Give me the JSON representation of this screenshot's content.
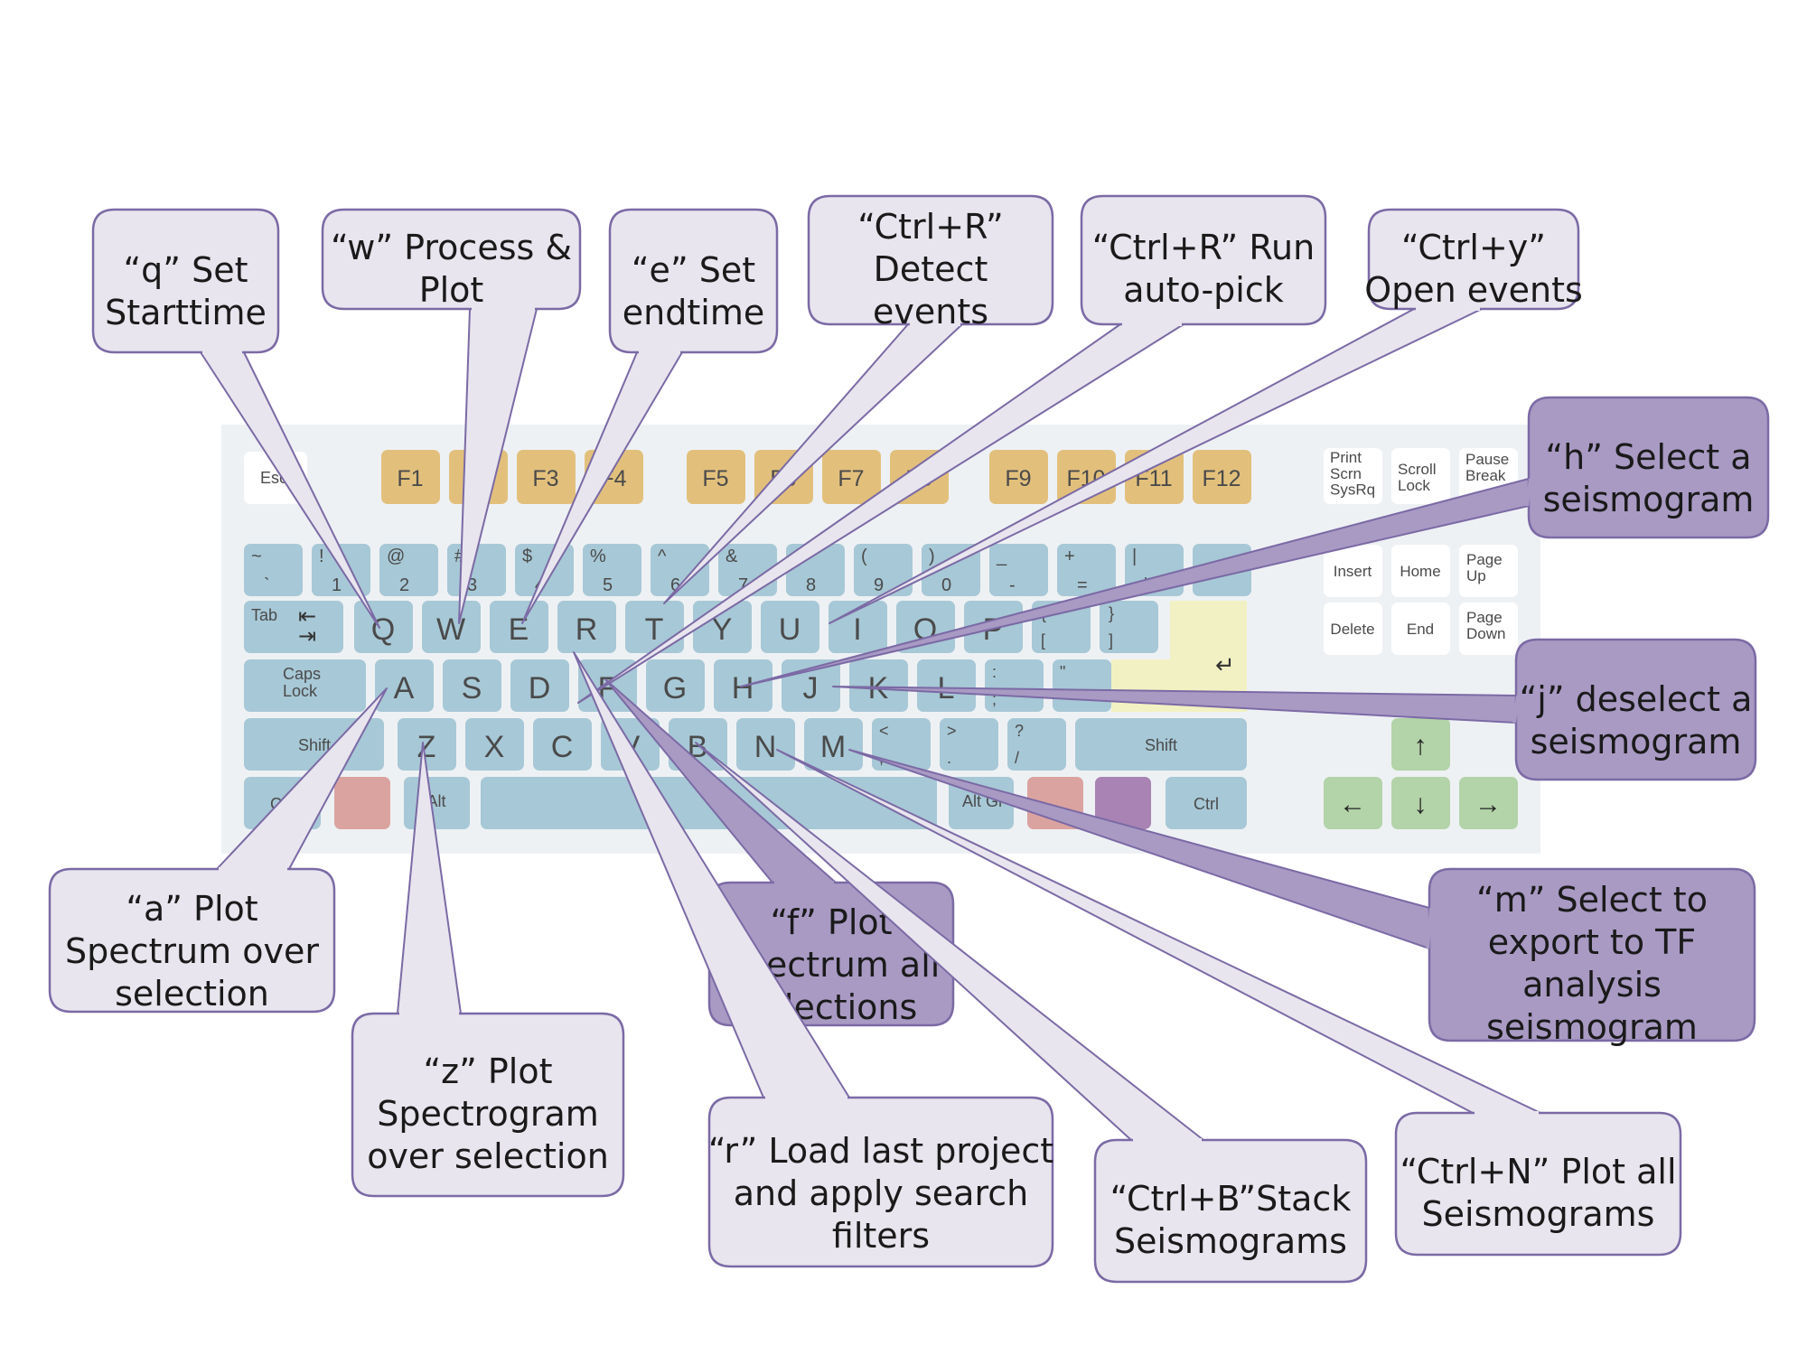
{
  "colors": {
    "key_blue": "#a7c8d6",
    "key_fn": "#e2c07c",
    "key_green": "#b3d3a8",
    "key_red": "#dba3a0",
    "key_purple": "#a883b3",
    "key_yellow": "#f2f1c3",
    "key_white": "#ffffff",
    "board_bg": "#eef1f4",
    "bubble_gray": "#e8e5ee",
    "bubble_purple": "#a99ac4",
    "bubble_border": "#7b6aa5"
  },
  "keys": {
    "esc": "Esc",
    "f": [
      "F1",
      "F2",
      "F3",
      "F4",
      "F5",
      "F6",
      "F7",
      "F8",
      "F9",
      "F10",
      "F11",
      "F12"
    ],
    "print": "Print\nScrn\nSysRq",
    "scroll": "Scroll\nLock",
    "pause": "Pause\nBreak",
    "num_row": [
      [
        "~",
        "`"
      ],
      [
        "!",
        "1"
      ],
      [
        "@",
        "2"
      ],
      [
        "#",
        "3"
      ],
      [
        "$",
        "4"
      ],
      [
        "%",
        "5"
      ],
      [
        "^",
        "6"
      ],
      [
        "&",
        "7"
      ],
      [
        "*",
        "8"
      ],
      [
        "(",
        "9"
      ],
      [
        ")",
        "0"
      ],
      [
        "_",
        "-"
      ],
      [
        "+",
        "="
      ],
      [
        "|",
        "\\"
      ],
      [
        "",
        ""
      ]
    ],
    "tab": "Tab",
    "q_row": [
      "Q",
      "W",
      "E",
      "R",
      "T",
      "Y",
      "U",
      "I",
      "O",
      "P"
    ],
    "q_row_sym": [
      [
        "{",
        "["
      ],
      [
        "}",
        "]"
      ]
    ],
    "caps": "Caps\nLock",
    "a_row": [
      "A",
      "S",
      "D",
      "F",
      "G",
      "H",
      "J",
      "K",
      "L"
    ],
    "a_row_sym": [
      [
        ":",
        ";"
      ],
      [
        "\"",
        "'"
      ]
    ],
    "shift": "Shift",
    "z_row": [
      "Z",
      "X",
      "C",
      "V",
      "B",
      "N",
      "M"
    ],
    "z_row_sym": [
      [
        "<",
        ","
      ],
      [
        ">",
        "."
      ],
      [
        "?",
        "/"
      ]
    ],
    "ctrl": "Ctrl",
    "alt": "Alt",
    "altgr": "Alt Gr",
    "nav": [
      "Insert",
      "Home",
      "Page\nUp",
      "Delete",
      "End",
      "Page\nDown"
    ],
    "arrows": [
      "↑",
      "←",
      "↓",
      "→"
    ]
  },
  "callouts": [
    {
      "id": "q",
      "lines": [
        "“q” Set",
        "Starttime"
      ],
      "style": "gray"
    },
    {
      "id": "w",
      "lines": [
        "“w” Process &",
        "Plot"
      ],
      "style": "gray"
    },
    {
      "id": "e",
      "lines": [
        "“e” Set",
        "endtime"
      ],
      "style": "gray"
    },
    {
      "id": "ctrlr-detect",
      "lines": [
        "“Ctrl+R”",
        "Detect",
        "events"
      ],
      "style": "gray"
    },
    {
      "id": "ctrlr-run",
      "lines": [
        "“Ctrl+R” Run",
        "auto-pick"
      ],
      "style": "gray"
    },
    {
      "id": "ctrly",
      "lines": [
        "“Ctrl+y”",
        "Open events"
      ],
      "style": "gray"
    },
    {
      "id": "h",
      "lines": [
        "“h” Select a",
        "seismogram"
      ],
      "style": "purple"
    },
    {
      "id": "j",
      "lines": [
        "“j” deselect a",
        "seismogram"
      ],
      "style": "purple"
    },
    {
      "id": "m",
      "lines": [
        "“m” Select to",
        "export to TF",
        "analysis",
        "seismogram"
      ],
      "style": "purple"
    },
    {
      "id": "a",
      "lines": [
        "“a” Plot",
        "Spectrum over",
        "selection"
      ],
      "style": "gray"
    },
    {
      "id": "z",
      "lines": [
        "“z” Plot",
        "Spectrogram",
        "over selection"
      ],
      "style": "gray"
    },
    {
      "id": "f",
      "lines": [
        "“f” Plot",
        "Spectrum all",
        "selections"
      ],
      "style": "purple"
    },
    {
      "id": "r",
      "lines": [
        "“r” Load last project",
        "and apply  search",
        "filters"
      ],
      "style": "gray"
    },
    {
      "id": "ctrlb",
      "lines": [
        "“Ctrl+B”Stack",
        "Seismograms"
      ],
      "style": "gray"
    },
    {
      "id": "ctrln",
      "lines": [
        "“Ctrl+N” Plot all",
        "Seismograms"
      ],
      "style": "gray"
    }
  ]
}
